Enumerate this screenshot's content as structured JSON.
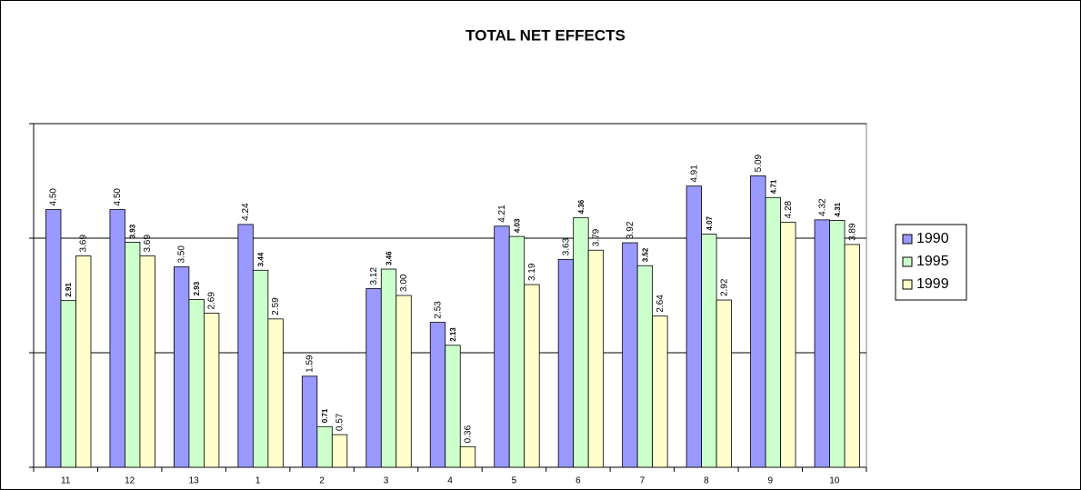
{
  "chart_data": {
    "type": "bar",
    "title": "TOTAL NET EFFECTS",
    "categories": [
      "11",
      "12",
      "13",
      "1",
      "2",
      "3",
      "4",
      "5",
      "6",
      "7",
      "8",
      "9",
      "10"
    ],
    "series": [
      {
        "name": "1990",
        "color": "#9999ff",
        "values": [
          4.5,
          4.5,
          3.5,
          4.24,
          1.59,
          3.12,
          2.53,
          4.21,
          3.63,
          3.92,
          4.91,
          5.09,
          4.32
        ],
        "value_labels": [
          "4.50",
          "4.50",
          "3.50",
          "4.24",
          "1.59",
          "3.12",
          "2.53",
          "4.21",
          "3.63",
          "3.92",
          "4.91",
          "5.09",
          "4.32"
        ]
      },
      {
        "name": "1995",
        "color": "#ccffcc",
        "values": [
          2.91,
          3.93,
          2.93,
          3.44,
          0.71,
          3.46,
          2.13,
          4.03,
          4.36,
          3.52,
          4.07,
          4.71,
          4.31
        ],
        "value_labels": [
          "2.91",
          "3.93",
          "2.93",
          "3.44",
          "0.71",
          "3.46",
          "2.13",
          "4.03",
          "4.36",
          "3.52",
          "4.07",
          "4.71",
          "4.31"
        ]
      },
      {
        "name": "1999",
        "color": "#ffffcc",
        "values": [
          3.69,
          3.69,
          2.69,
          2.59,
          0.57,
          3.0,
          0.36,
          3.19,
          3.79,
          2.64,
          2.92,
          4.28,
          3.89
        ],
        "value_labels": [
          "3.69",
          "3.69",
          "2.69",
          "2.59",
          "0.57",
          "3.00",
          "0.36",
          "3.19",
          "3.79",
          "2.64",
          "2.92",
          "4.28",
          "3.89"
        ]
      }
    ],
    "ylim": [
      0,
      6
    ],
    "yticks": [
      0,
      2,
      4,
      6
    ],
    "grid": true,
    "legend": "right"
  }
}
